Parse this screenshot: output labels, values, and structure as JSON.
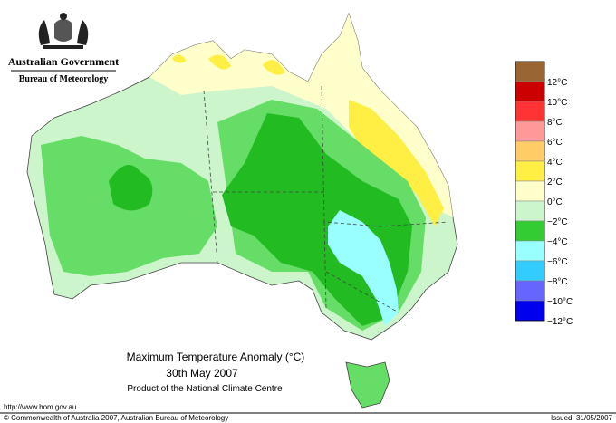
{
  "header": {
    "government": "Australian Government",
    "bureau": "Bureau of Meteorology"
  },
  "map": {
    "title": "Maximum Temperature Anomaly (°C)",
    "date": "30th May 2007",
    "product": "Product of the National Climate Centre"
  },
  "legend": {
    "colors": [
      "#996633",
      "#cc0000",
      "#ff3333",
      "#ff9999",
      "#ffcc66",
      "#ffee44",
      "#ffffcc",
      "#ccf5cc",
      "#33cc33",
      "#99ffff",
      "#33ccff",
      "#6666ff",
      "#0000ee"
    ],
    "labels": [
      "12°C",
      "10°C",
      "8°C",
      "6°C",
      "4°C",
      "2°C",
      "0°C",
      "−2°C",
      "−4°C",
      "−6°C",
      "−8°C",
      "−10°C",
      "−12°C"
    ]
  },
  "footer": {
    "url": "http://www.bom.gov.au",
    "copyright": "© Commonwealth of Australia 2007, Australian Bureau of Meteorology",
    "issued": "Issued: 31/05/2007"
  }
}
